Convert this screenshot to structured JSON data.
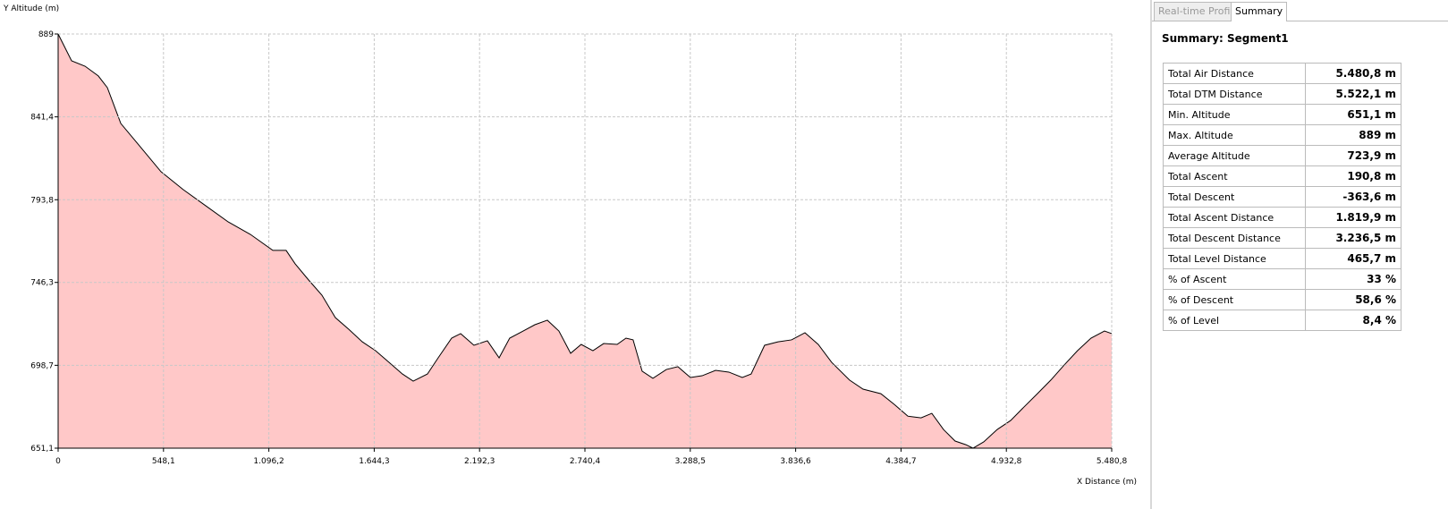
{
  "chart_data": {
    "type": "area",
    "y_label": "Y Altitude (m)",
    "x_label": "X Distance (m)",
    "x": [
      0,
      70,
      140,
      209,
      256,
      326,
      419,
      535,
      651,
      768,
      884,
      1000,
      1117,
      1186,
      1233,
      1303,
      1372,
      1442,
      1512,
      1582,
      1651,
      1721,
      1791,
      1847,
      1921,
      1977,
      2047,
      2094,
      2163,
      2233,
      2294,
      2349,
      2419,
      2480,
      2545,
      2605,
      2666,
      2721,
      2782,
      2838,
      2908,
      2954,
      2991,
      3038,
      3094,
      3164,
      3224,
      3289,
      3350,
      3420,
      3489,
      3559,
      3605,
      3675,
      3745,
      3815,
      3885,
      3954,
      4024,
      4117,
      4187,
      4280,
      4350,
      4420,
      4489,
      4545,
      4606,
      4666,
      4722,
      4759,
      4815,
      4885,
      4955,
      5024,
      5094,
      5164,
      5234,
      5303,
      5373,
      5443,
      5480.8
    ],
    "values": [
      889,
      873.6,
      870.5,
      864.9,
      858.2,
      837.6,
      825.3,
      809.9,
      799.6,
      790.3,
      781.1,
      773.9,
      764.7,
      764.7,
      757,
      747.7,
      739,
      726.1,
      719.4,
      712.2,
      707.1,
      700.4,
      693.7,
      689.6,
      693.7,
      703,
      714.3,
      716.9,
      710.2,
      712.8,
      703,
      714.3,
      718.4,
      722,
      724.6,
      718.4,
      705.6,
      710.7,
      707.1,
      711.2,
      710.7,
      714.3,
      713.3,
      695.3,
      691.2,
      696.3,
      697.9,
      691.7,
      692.7,
      695.8,
      694.8,
      691.7,
      693.7,
      710.2,
      712.2,
      713.3,
      717.4,
      710.7,
      700.4,
      690.2,
      685,
      682.4,
      676.2,
      669.5,
      668.5,
      671.1,
      661.8,
      655.2,
      653.1,
      651.1,
      654.7,
      661.8,
      667,
      674.7,
      682.4,
      690.2,
      698.9,
      707.1,
      714.3,
      718.4,
      716.9
    ],
    "color": "#ffc8c8",
    "line_color": "#000000",
    "grid": true,
    "xlim": [
      0,
      5480.8
    ],
    "xticks": [
      0,
      {
        "value": 548.1,
        "label": "548,1"
      },
      {
        "value": 1096.2,
        "label": "1.096,2"
      },
      {
        "value": 1644.3,
        "label": "1.644,3"
      },
      {
        "value": 2192.3,
        "label": "2.192,3"
      },
      {
        "value": 2740.4,
        "label": "2.740,4"
      },
      {
        "value": 3288.5,
        "label": "3.288,5"
      },
      {
        "value": 3836.6,
        "label": "3.836,6"
      },
      {
        "value": 4384.7,
        "label": "4.384,7"
      },
      {
        "value": 4932.8,
        "label": "4.932,8"
      },
      {
        "value": 5480.8,
        "label": "5.480,8"
      }
    ],
    "ylim": [
      651.1,
      889
    ],
    "yticks": [
      {
        "value": 651.1,
        "label": "651,1"
      },
      {
        "value": 698.7,
        "label": "698,7"
      },
      {
        "value": 746.3,
        "label": "746,3"
      },
      {
        "value": 793.8,
        "label": "793,8"
      },
      {
        "value": 841.4,
        "label": "841,4"
      },
      889
    ]
  },
  "panel": {
    "tabs": [
      "Real-time Profile",
      "Summary"
    ],
    "title": "Summary: Segment1",
    "rows": [
      [
        "Total Air Distance",
        "5.480,8 m"
      ],
      [
        "Total DTM Distance",
        "5.522,1 m"
      ],
      [
        "Min. Altitude",
        "651,1 m"
      ],
      [
        "Max. Altitude",
        "889 m"
      ],
      [
        "Average Altitude",
        "723,9 m"
      ],
      [
        "Total Ascent",
        "190,8 m"
      ],
      [
        "Total Descent",
        "-363,6 m"
      ],
      [
        "Total Ascent Distance",
        "1.819,9 m"
      ],
      [
        "Total Descent Distance",
        "3.236,5 m"
      ],
      [
        "Total Level Distance",
        "465,7 m"
      ],
      [
        "% of Ascent",
        "33 %"
      ],
      [
        "% of Descent",
        "58,6 %"
      ],
      [
        "% of Level",
        "8,4 %"
      ]
    ]
  }
}
